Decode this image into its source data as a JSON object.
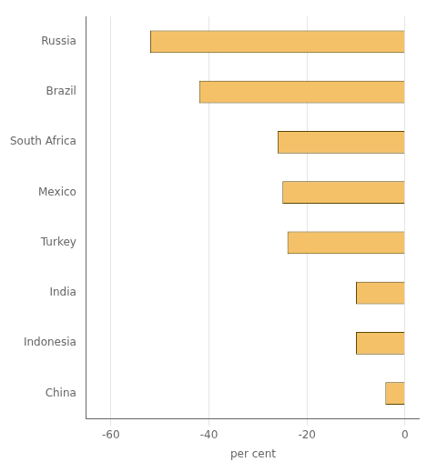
{
  "chart_data": {
    "type": "bar",
    "orientation": "horizontal",
    "categories": [
      "Russia",
      "Brazil",
      "South Africa",
      "Mexico",
      "Turkey",
      "India",
      "Indonesia",
      "China"
    ],
    "values": [
      -52,
      -42,
      -26,
      -25,
      -24,
      -10,
      -10,
      -4
    ],
    "color": "#F5C168",
    "xlabel": "per cent",
    "xlim": [
      -65,
      3
    ],
    "xticks": [
      -60,
      -40,
      -20,
      0
    ],
    "grid": true
  }
}
